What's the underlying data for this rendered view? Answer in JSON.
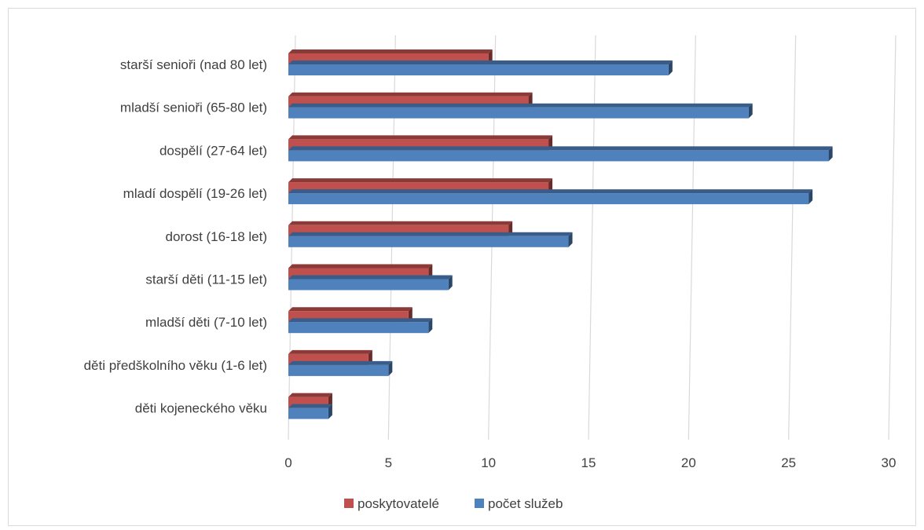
{
  "chart_data": {
    "type": "bar",
    "orientation": "horizontal",
    "style": "3d",
    "categories": [
      "starší senioři (nad 80 let)",
      "mladší senioři (65-80 let)",
      "dospělí (27-64 let)",
      "mladí dospělí (19-26 let)",
      "dorost (16-18 let)",
      "starší děti (11-15 let)",
      "mladší děti (7-10 let)",
      "děti předškolního věku (1-6 let)",
      "děti kojeneckého věku"
    ],
    "series": [
      {
        "name": "poskytovatelé",
        "color": "#C0504D",
        "values": [
          10,
          12,
          13,
          13,
          11,
          7,
          6,
          4,
          2
        ]
      },
      {
        "name": "počet služeb",
        "color": "#4F81BD",
        "values": [
          19,
          23,
          27,
          26,
          14,
          8,
          7,
          5,
          2
        ]
      }
    ],
    "x_ticks": [
      "0",
      "5",
      "10",
      "15",
      "20",
      "25",
      "30"
    ],
    "xlim": [
      0,
      30
    ],
    "grid": true,
    "legend_position": "bottom"
  }
}
